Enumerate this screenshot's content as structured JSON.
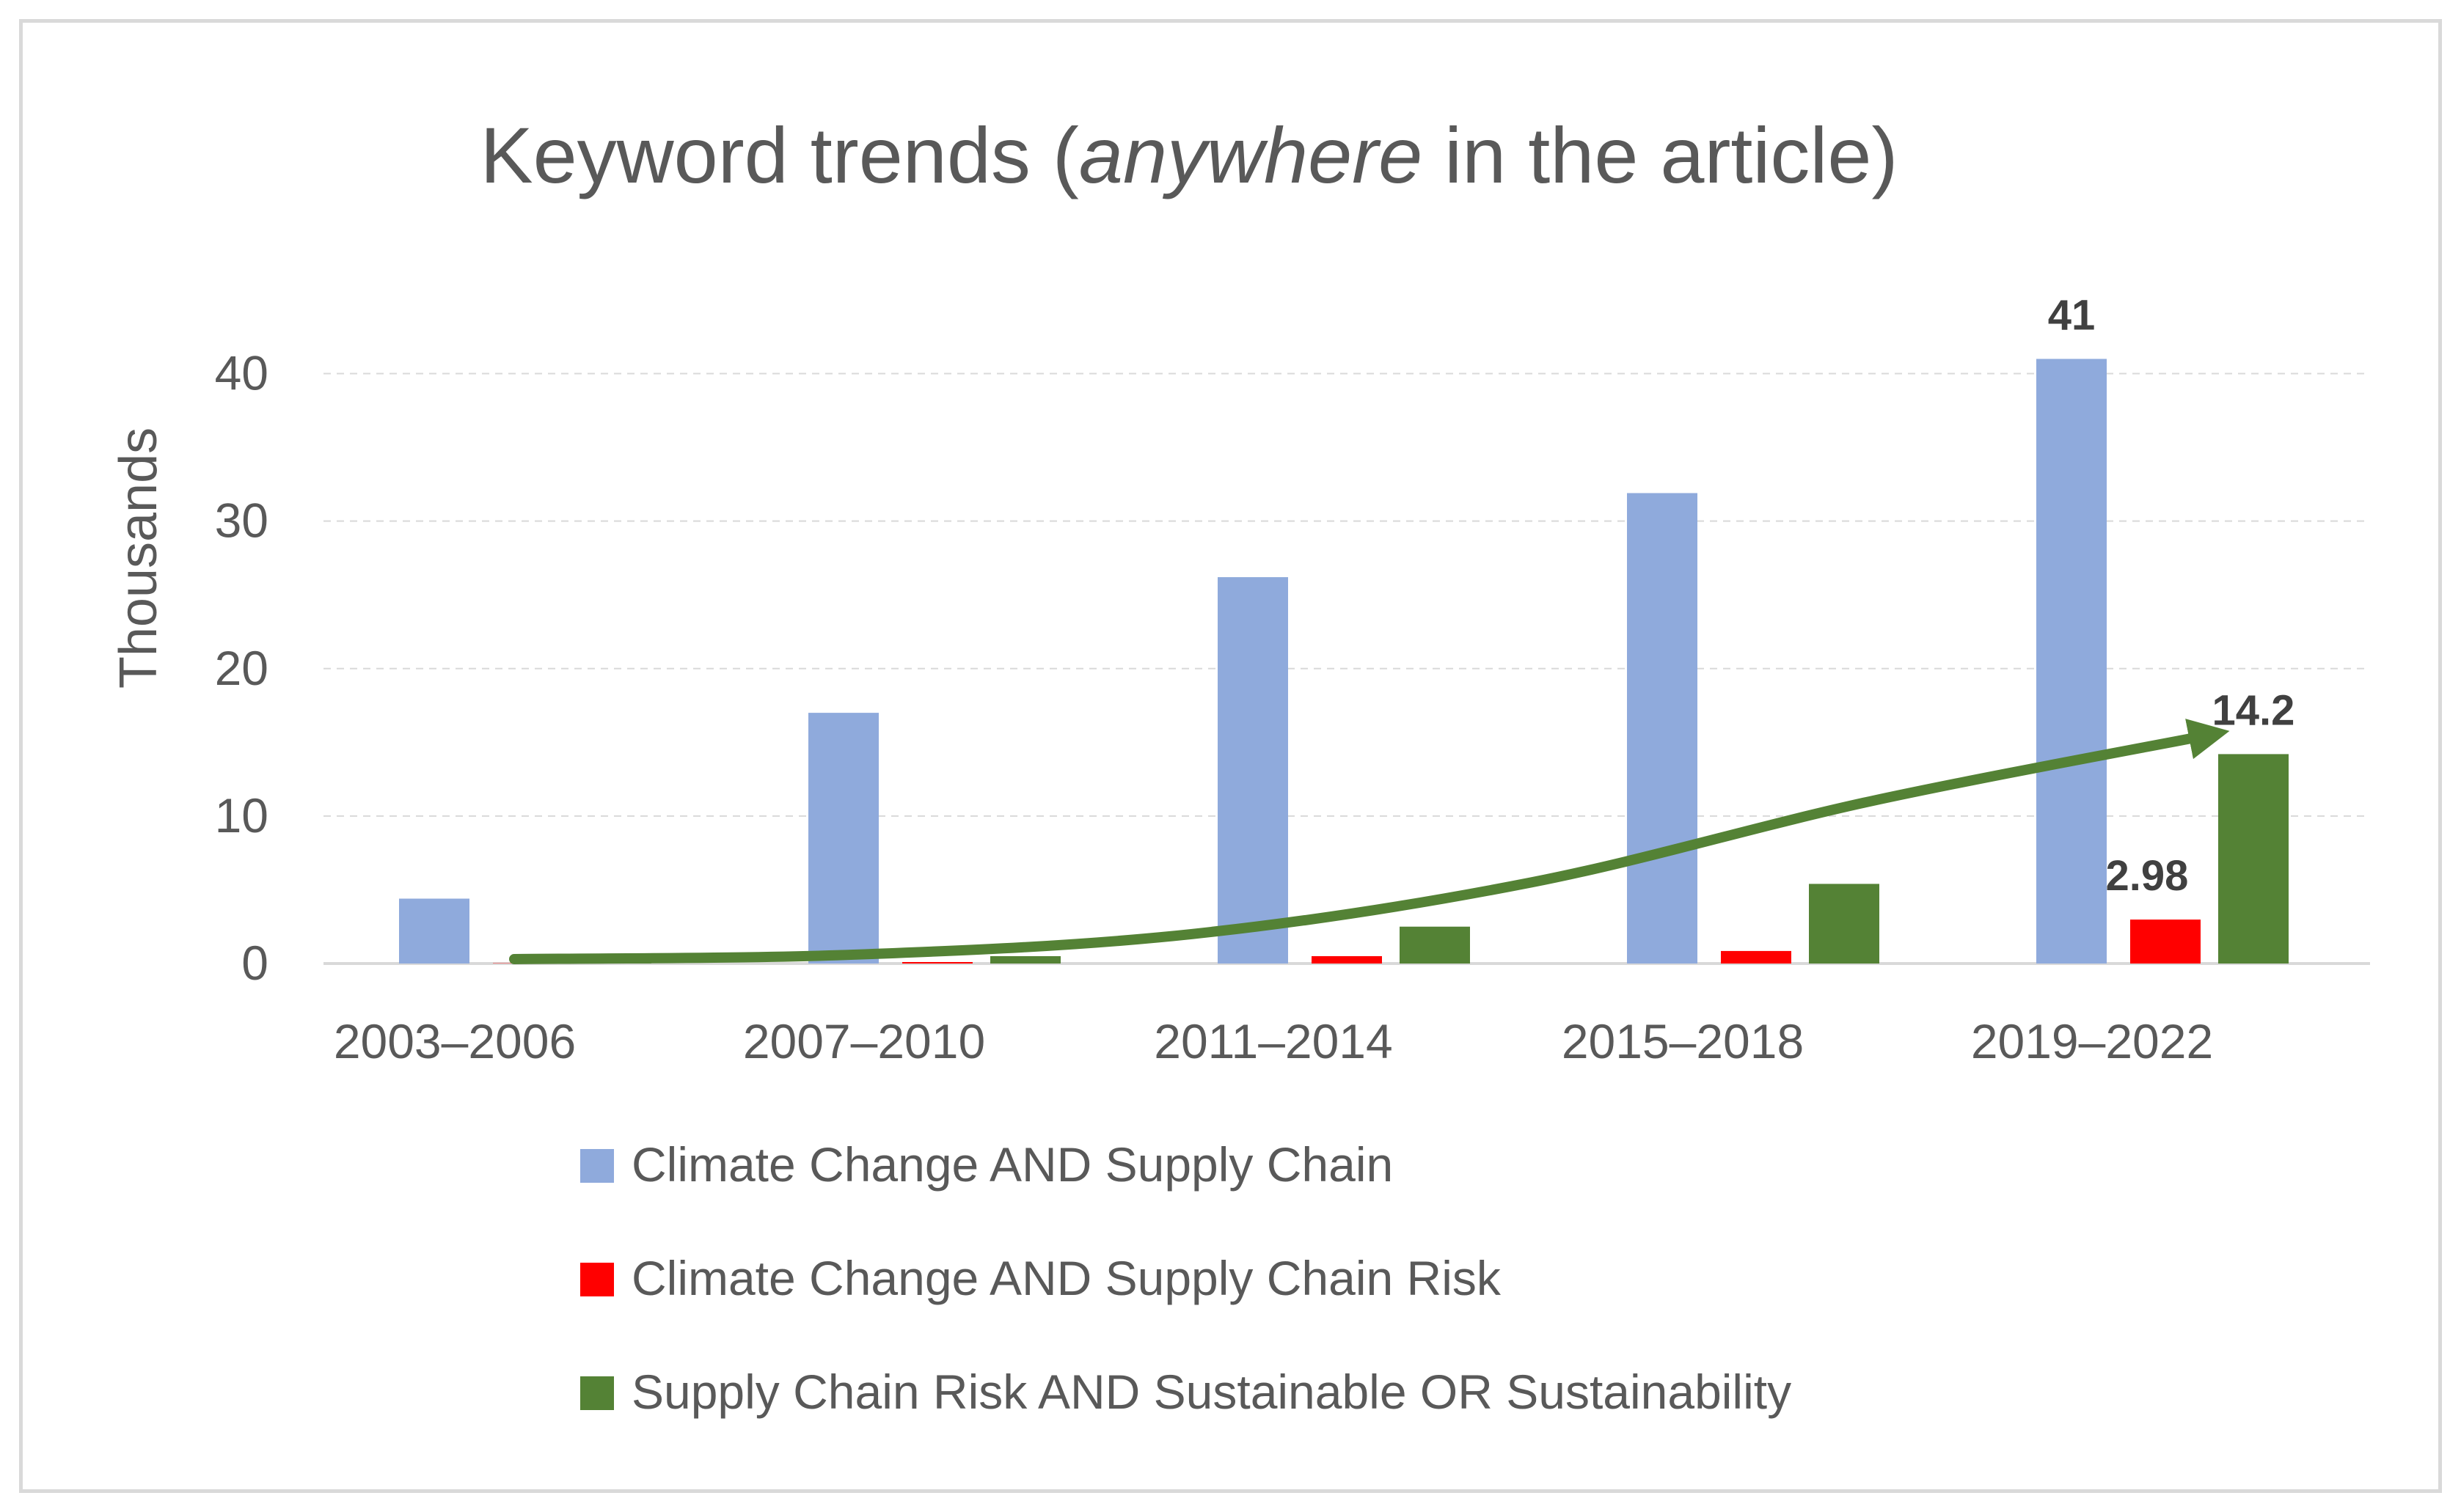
{
  "chart_data": {
    "type": "bar",
    "title": {
      "before": "Keyword trends (",
      "italic": "anywhere",
      "after": " in the article)"
    },
    "xlabel": "",
    "ylabel": "Thousands",
    "ylim": [
      0,
      45
    ],
    "yticks": [
      0,
      10,
      20,
      30,
      40
    ],
    "grid": true,
    "legend_position": "bottom",
    "categories": [
      "2003–2006",
      "2007–2010",
      "2011–2014",
      "2015–2018",
      "2019–2022"
    ],
    "series": [
      {
        "name": "Climate Change AND Supply Chain",
        "color": "#8faadc",
        "values": [
          4.4,
          17,
          26.2,
          31.9,
          41
        ]
      },
      {
        "name": "Climate Change AND Supply Chain Risk",
        "color": "#ff0000",
        "values": [
          0.02,
          0.1,
          0.5,
          0.85,
          2.98
        ]
      },
      {
        "name": "Supply Chain Risk AND Sustainable OR Sustainability",
        "color": "#548235",
        "values": [
          0.05,
          0.5,
          2.5,
          5.4,
          14.2
        ]
      }
    ],
    "data_labels": [
      {
        "series": 0,
        "category": 4,
        "text": "41"
      },
      {
        "series": 1,
        "category": 4,
        "text": "2.98"
      },
      {
        "series": 2,
        "category": 4,
        "text": "14.2"
      }
    ],
    "annotations": [
      {
        "type": "trend-arrow",
        "color": "#548235",
        "description": "exponential growth trend",
        "values": [
          0.3,
          0.6,
          2.0,
          5.5,
          11.0,
          15.5
        ]
      }
    ]
  }
}
